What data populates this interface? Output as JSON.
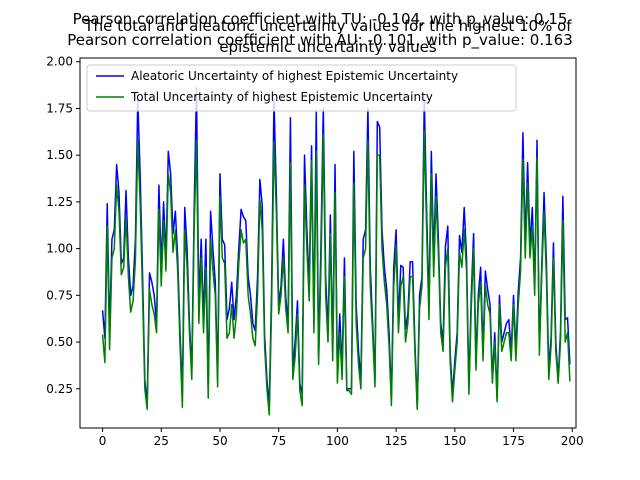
{
  "chart_data": {
    "type": "line",
    "title_lines": [
      "Pearson correlation coefficient with TU: -0.104, with p_value: 0.15",
      "The total and aleatoric uncertainty values for the highest 10% of",
      "Pearson correlation coefficient with AU: -0.101, with p_value: 0.163",
      "epistemic uncertainty values"
    ],
    "xlim": [
      -9.6,
      201.6
    ],
    "ylim": [
      0.04,
      2.02
    ],
    "xticks": [
      0,
      25,
      50,
      75,
      100,
      125,
      150,
      175,
      200
    ],
    "yticks": [
      0.25,
      0.5,
      0.75,
      1.0,
      1.25,
      1.5,
      1.75,
      2.0
    ],
    "xtick_labels": [
      "0",
      "25",
      "50",
      "75",
      "100",
      "125",
      "150",
      "175",
      "200"
    ],
    "ytick_labels": [
      "0.25",
      "0.50",
      "0.75",
      "1.00",
      "1.25",
      "1.50",
      "1.75",
      "2.00"
    ],
    "legend_position": "upper-left",
    "series": [
      {
        "name": "Aleatoric Uncertainty of highest Epistemic Uncertainty",
        "color": "#0000ff",
        "values": [
          0.67,
          0.52,
          1.24,
          0.55,
          1.05,
          1.1,
          1.45,
          1.3,
          0.92,
          0.95,
          1.31,
          0.95,
          0.75,
          0.8,
          1.05,
          1.8,
          1.4,
          0.88,
          0.3,
          0.16,
          0.87,
          0.82,
          0.75,
          0.6,
          1.34,
          0.9,
          1.25,
          0.95,
          1.52,
          1.4,
          1.08,
          1.2,
          0.95,
          0.55,
          0.22,
          1.22,
          1.0,
          0.6,
          0.35,
          1.2,
          1.86,
          0.7,
          1.05,
          0.62,
          1.05,
          0.25,
          1.2,
          1.0,
          0.82,
          0.31,
          1.4,
          1.05,
          1.02,
          0.62,
          0.68,
          0.82,
          0.62,
          0.75,
          1.0,
          1.21,
          1.17,
          1.15,
          0.85,
          0.75,
          0.6,
          0.56,
          0.85,
          1.37,
          1.23,
          0.54,
          0.3,
          0.16,
          0.8,
          1.8,
          1.3,
          0.7,
          0.8,
          1.05,
          0.74,
          0.6,
          1.7,
          0.35,
          0.5,
          0.72,
          0.28,
          0.22,
          1.5,
          1.1,
          0.8,
          1.55,
          0.6,
          1.73,
          0.42,
          1.02,
          1.75,
          0.85,
          0.55,
          1.18,
          0.45,
          1.45,
          0.32,
          0.65,
          0.35,
          0.95,
          0.25,
          0.25,
          0.25,
          1.52,
          0.7,
          0.45,
          0.3,
          1.05,
          1.1,
          1.75,
          0.9,
          0.6,
          0.3,
          1.68,
          1.65,
          1.1,
          0.9,
          0.78,
          0.55,
          0.2,
          0.9,
          1.1,
          0.62,
          0.91,
          0.9,
          0.57,
          0.65,
          0.93,
          0.93,
          0.5,
          0.15,
          0.75,
          0.85,
          1.8,
          1.2,
          0.7,
          1.52,
          0.95,
          1.4,
          1.05,
          0.6,
          0.5,
          1.01,
          1.12,
          0.45,
          0.22,
          0.4,
          0.55,
          1.07,
          0.98,
          1.22,
          0.95,
          0.25,
          0.75,
          1.08,
          0.4,
          0.75,
          0.9,
          0.45,
          0.88,
          0.78,
          0.7,
          0.3,
          0.55,
          0.2,
          0.75,
          0.5,
          0.55,
          0.6,
          0.62,
          0.45,
          0.75,
          0.45,
          0.77,
          0.95,
          1.62,
          1.03,
          1.46,
          1.02,
          1.22,
          0.8,
          1.58,
          0.47,
          0.9,
          1.3,
          0.93,
          0.35,
          0.53,
          1.03,
          0.5,
          0.3,
          0.55,
          1.28,
          0.62,
          0.63,
          0.38
        ]
      },
      {
        "name": "Total Uncertainty of highest Epistemic Uncertainty",
        "color": "#008000",
        "values": [
          0.54,
          0.39,
          1.12,
          0.46,
          0.95,
          1.0,
          1.34,
          1.2,
          0.86,
          0.9,
          1.17,
          0.85,
          0.66,
          0.72,
          0.94,
          1.58,
          1.25,
          0.78,
          0.25,
          0.14,
          0.78,
          0.7,
          0.65,
          0.55,
          1.21,
          0.8,
          1.15,
          0.88,
          1.4,
          1.3,
          0.98,
          1.1,
          0.88,
          0.48,
          0.15,
          1.1,
          0.9,
          0.55,
          0.3,
          1.1,
          1.58,
          0.6,
          0.95,
          0.55,
          0.9,
          0.2,
          1.05,
          0.88,
          0.75,
          0.26,
          1.28,
          0.95,
          0.92,
          0.52,
          0.55,
          0.7,
          0.52,
          0.65,
          0.92,
          1.1,
          1.03,
          1.05,
          0.75,
          0.65,
          0.52,
          0.48,
          0.75,
          1.26,
          1.1,
          0.48,
          0.25,
          0.11,
          0.7,
          1.57,
          1.2,
          0.65,
          0.75,
          0.95,
          0.68,
          0.55,
          1.46,
          0.3,
          0.42,
          0.65,
          0.24,
          0.16,
          1.34,
          1.0,
          0.72,
          1.47,
          0.55,
          1.52,
          0.38,
          0.9,
          1.61,
          0.75,
          0.5,
          1.08,
          0.4,
          1.3,
          0.28,
          0.55,
          0.3,
          0.85,
          0.24,
          0.24,
          0.22,
          1.35,
          0.6,
          0.38,
          0.25,
          0.95,
          1.0,
          1.58,
          0.8,
          0.55,
          0.26,
          1.5,
          1.5,
          1.0,
          0.82,
          0.7,
          0.48,
          0.16,
          0.8,
          1.02,
          0.55,
          0.8,
          0.85,
          0.5,
          0.6,
          0.85,
          0.85,
          0.45,
          0.14,
          0.68,
          0.8,
          1.63,
          1.1,
          0.62,
          1.4,
          0.85,
          1.28,
          0.98,
          0.55,
          0.45,
          0.9,
          1.0,
          0.4,
          0.18,
          0.35,
          0.5,
          0.98,
          0.9,
          1.1,
          0.88,
          0.22,
          0.68,
          1.0,
          0.35,
          0.7,
          0.82,
          0.4,
          0.8,
          0.7,
          0.65,
          0.28,
          0.5,
          0.18,
          0.7,
          0.45,
          0.5,
          0.55,
          0.55,
          0.4,
          0.7,
          0.4,
          0.7,
          0.88,
          1.48,
          0.95,
          1.35,
          0.95,
          1.12,
          0.75,
          1.49,
          0.43,
          0.85,
          1.2,
          0.85,
          0.3,
          0.48,
          0.95,
          0.45,
          0.28,
          0.5,
          1.15,
          0.5,
          0.55,
          0.29
        ]
      }
    ]
  }
}
